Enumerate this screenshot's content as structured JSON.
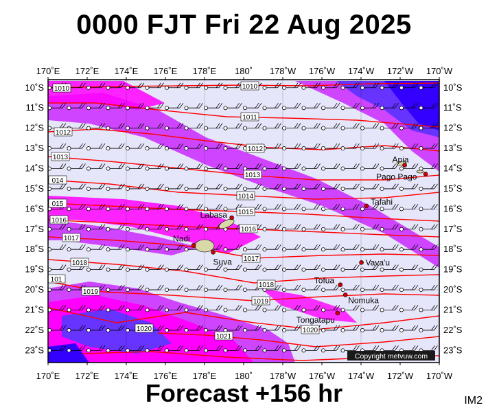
{
  "header": {
    "title": "0000 FJT Fri 22 Aug 2025"
  },
  "footer": {
    "forecast": "Forecast +156 hr",
    "code": "IM2"
  },
  "map": {
    "lon_labels": [
      "170˚E",
      "172˚E",
      "174˚E",
      "176˚E",
      "178˚E",
      "180˚",
      "178˚W",
      "176˚W",
      "174˚W",
      "172˚W",
      "170˚W"
    ],
    "lat_labels": [
      "10˚S",
      "11˚S",
      "12˚S",
      "13˚S",
      "14˚S",
      "15˚S",
      "16˚S",
      "17˚S",
      "18˚S",
      "19˚S",
      "20˚S",
      "21˚S",
      "22˚S",
      "23˚S"
    ],
    "copyright": "Copyright metvuw.com",
    "places": [
      {
        "name": "Apia",
        "lon": -171.77,
        "lat": -13.83
      },
      {
        "name": "Pago Pago",
        "lon": -170.7,
        "lat": -14.27
      },
      {
        "name": "Tafahi",
        "lon": -173.72,
        "lat": -15.85
      },
      {
        "name": "Labasa",
        "lon": 179.39,
        "lat": -16.43
      },
      {
        "name": "Nadi",
        "lon": 177.44,
        "lat": -17.8
      },
      {
        "name": "Suva",
        "lon": 178.44,
        "lat": -18.14
      },
      {
        "name": "Vava'u",
        "lon": -173.98,
        "lat": -18.65
      },
      {
        "name": "Tofua",
        "lon": -175.06,
        "lat": -19.75
      },
      {
        "name": "Nomuka",
        "lon": -174.8,
        "lat": -20.25
      },
      {
        "name": "Tongatapu",
        "lon": -175.2,
        "lat": -21.15
      }
    ],
    "isobar_labels": [
      "1010",
      "1010",
      "1011",
      "1012",
      "1012",
      "1013",
      "1013",
      "014",
      "1014",
      "015",
      "1015",
      "1016",
      "1016",
      "1017",
      "1017",
      "1018",
      "1018",
      "101",
      "1019",
      "1019",
      "1020",
      "1020",
      "1021"
    ],
    "colors": {
      "background": "#e6e6fa",
      "light_rain": "#cc33ff",
      "heavy_rain": "#ff00ff",
      "very_heavy": "#6633ff",
      "extreme": "#3300ff",
      "isobar": "#ff0000"
    }
  }
}
